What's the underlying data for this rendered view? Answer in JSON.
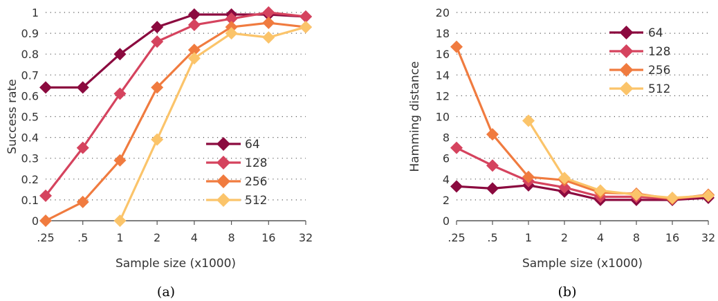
{
  "chart_data": [
    {
      "type": "line",
      "caption": "(a)",
      "xlabel": "Sample size (x1000)",
      "ylabel": "Success rate",
      "categories": [
        ".25",
        ".5",
        "1",
        "2",
        "4",
        "8",
        "16",
        "32"
      ],
      "ylim": [
        0,
        1
      ],
      "yticks": [
        "0",
        "0.1",
        "0.2",
        "0.3",
        "0.4",
        "0.5",
        "0.6",
        "0.7",
        "0.8",
        "0.9",
        "1"
      ],
      "grid": "dotted horizontal",
      "legend_position": "lower-right",
      "series": [
        {
          "name": "64",
          "color": "#8B0A3F",
          "values": [
            0.64,
            0.64,
            0.8,
            0.93,
            0.99,
            0.99,
            0.99,
            0.98
          ]
        },
        {
          "name": "128",
          "color": "#D5435E",
          "values": [
            0.12,
            0.35,
            0.61,
            0.86,
            0.94,
            0.97,
            1.0,
            0.98
          ]
        },
        {
          "name": "256",
          "color": "#F07B3F",
          "values": [
            0.0,
            0.09,
            0.29,
            0.64,
            0.82,
            0.93,
            0.95,
            0.93
          ]
        },
        {
          "name": "512",
          "color": "#FBC46A",
          "values": [
            null,
            null,
            0.0,
            0.39,
            0.78,
            0.9,
            0.88,
            0.93
          ]
        }
      ]
    },
    {
      "type": "line",
      "caption": "(b)",
      "xlabel": "Sample size (x1000)",
      "ylabel": "Hamming distance",
      "categories": [
        ".25",
        ".5",
        "1",
        "2",
        "4",
        "8",
        "16",
        "32"
      ],
      "ylim": [
        0,
        20
      ],
      "yticks": [
        "0",
        "2",
        "4",
        "6",
        "8",
        "10",
        "12",
        "14",
        "16",
        "18",
        "20"
      ],
      "grid": "dotted horizontal",
      "legend_position": "top-right",
      "series": [
        {
          "name": "64",
          "color": "#8B0A3F",
          "values": [
            3.3,
            3.1,
            3.4,
            2.8,
            2.0,
            2.0,
            2.0,
            2.2
          ]
        },
        {
          "name": "128",
          "color": "#D5435E",
          "values": [
            7.0,
            5.3,
            3.8,
            3.2,
            2.3,
            2.3,
            2.1,
            2.4
          ]
        },
        {
          "name": "256",
          "color": "#F07B3F",
          "values": [
            16.7,
            8.3,
            4.2,
            3.9,
            2.7,
            2.6,
            2.1,
            2.5
          ]
        },
        {
          "name": "512",
          "color": "#FBC46A",
          "values": [
            null,
            null,
            9.6,
            4.1,
            2.9,
            2.5,
            2.2,
            2.4
          ]
        }
      ]
    }
  ]
}
